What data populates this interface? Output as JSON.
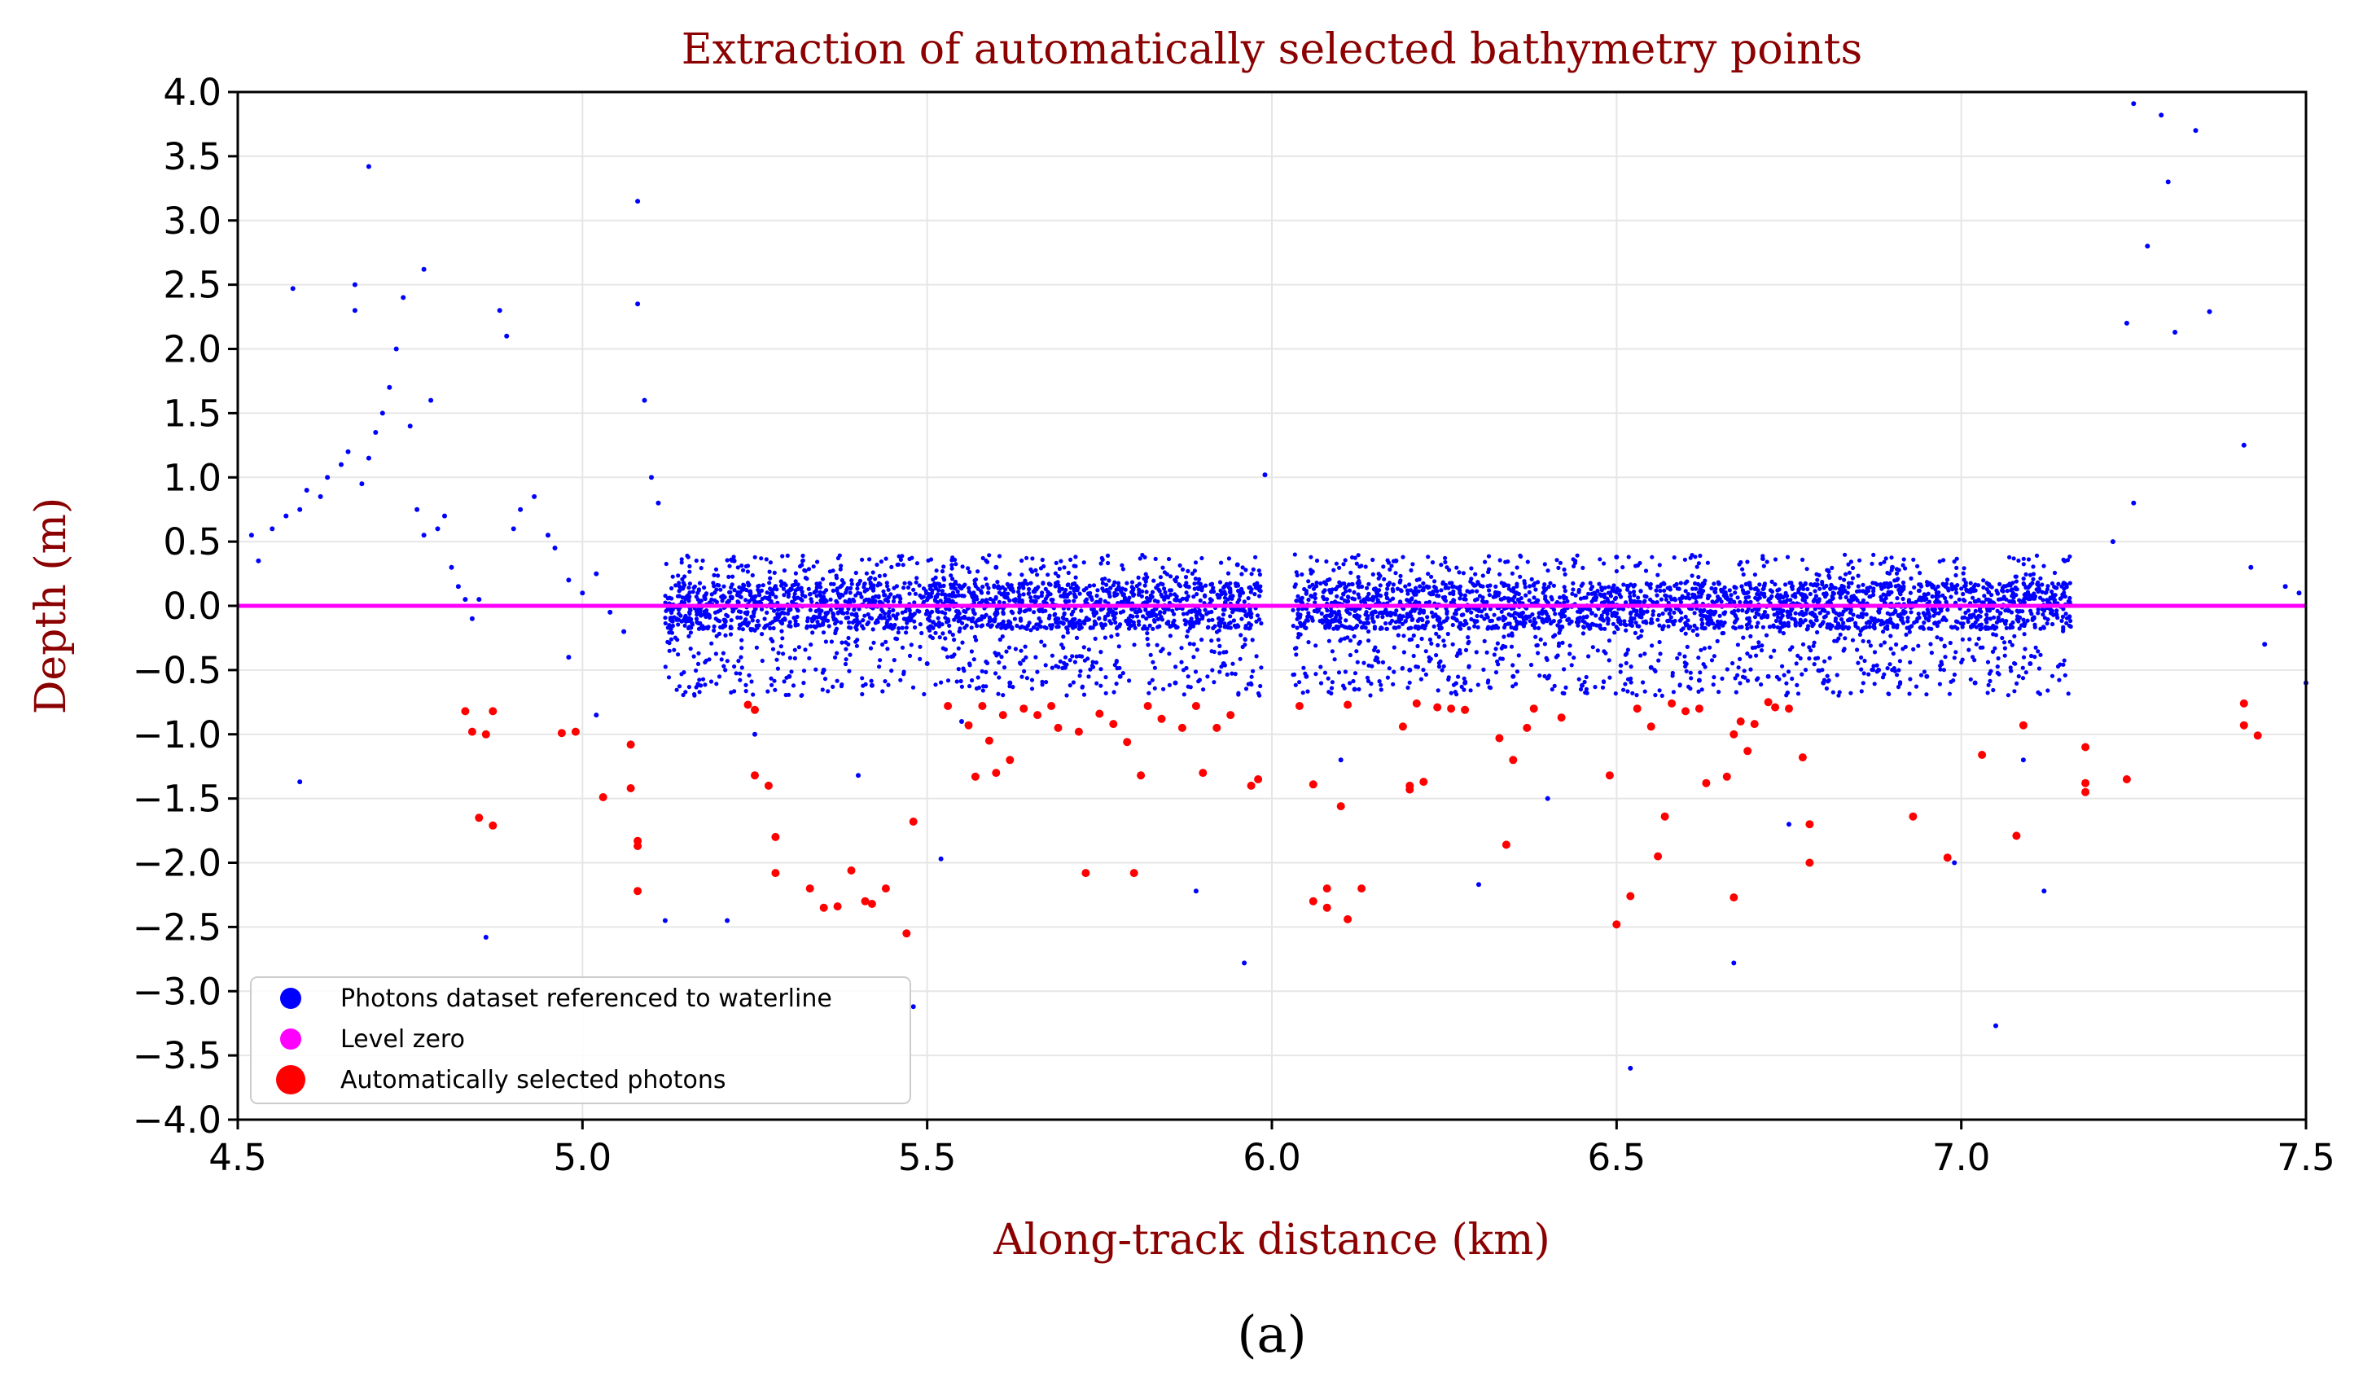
{
  "chart_data": {
    "type": "scatter",
    "title": "Extraction of automatically selected bathymetry points",
    "xlabel": "Along-track distance (km)",
    "ylabel": "Depth (m)",
    "xlim": [
      4.5,
      7.5
    ],
    "ylim": [
      -4.0,
      4.0
    ],
    "xticks": [
      4.5,
      5.0,
      5.5,
      6.0,
      6.5,
      7.0,
      7.5
    ],
    "xtick_labels": [
      "4.5",
      "5.0",
      "5.5",
      "6.0",
      "6.5",
      "7.0",
      "7.5"
    ],
    "yticks": [
      4.0,
      3.5,
      3.0,
      2.5,
      2.0,
      1.5,
      1.0,
      0.5,
      0.0,
      -0.5,
      -1.0,
      -1.5,
      -2.0,
      -2.5,
      -3.0,
      -3.5,
      -4.0
    ],
    "ytick_labels": [
      "4.0",
      "3.5",
      "3.0",
      "2.5",
      "2.0",
      "1.5",
      "1.0",
      "0.5",
      "0.0",
      "−0.5",
      "−1.0",
      "−1.5",
      "−2.0",
      "−2.5",
      "−3.0",
      "−3.5",
      "−4.0"
    ],
    "grid": true,
    "legend_position": "lower-left",
    "series": [
      {
        "name": "Photons dataset referenced to waterline",
        "color": "#0000ff",
        "points": [
          [
            4.52,
            0.55
          ],
          [
            4.53,
            0.35
          ],
          [
            4.55,
            0.6
          ],
          [
            4.57,
            0.7
          ],
          [
            4.59,
            0.75
          ],
          [
            4.6,
            0.9
          ],
          [
            4.62,
            0.85
          ],
          [
            4.63,
            1.0
          ],
          [
            4.65,
            1.1
          ],
          [
            4.66,
            1.2
          ],
          [
            4.67,
            2.3
          ],
          [
            4.67,
            2.5
          ],
          [
            4.68,
            0.95
          ],
          [
            4.69,
            1.15
          ],
          [
            4.7,
            1.35
          ],
          [
            4.71,
            1.5
          ],
          [
            4.72,
            1.7
          ],
          [
            4.73,
            2.0
          ],
          [
            4.74,
            2.4
          ],
          [
            4.75,
            1.4
          ],
          [
            4.76,
            0.75
          ],
          [
            4.77,
            0.55
          ],
          [
            4.78,
            1.6
          ],
          [
            4.79,
            0.6
          ],
          [
            4.8,
            0.7
          ],
          [
            4.81,
            0.3
          ],
          [
            4.82,
            0.15
          ],
          [
            4.83,
            0.05
          ],
          [
            4.84,
            -0.1
          ],
          [
            4.85,
            0.05
          ],
          [
            4.88,
            2.3
          ],
          [
            4.89,
            2.1
          ],
          [
            4.9,
            0.6
          ],
          [
            4.91,
            0.75
          ],
          [
            4.93,
            0.85
          ],
          [
            4.95,
            0.55
          ],
          [
            4.96,
            0.45
          ],
          [
            4.98,
            0.2
          ],
          [
            5.0,
            0.1
          ],
          [
            5.02,
            0.25
          ],
          [
            5.04,
            -0.05
          ],
          [
            5.06,
            -0.2
          ],
          [
            5.08,
            2.35
          ],
          [
            5.08,
            3.15
          ],
          [
            5.09,
            1.6
          ],
          [
            5.1,
            1.0
          ],
          [
            5.11,
            0.8
          ],
          [
            4.69,
            3.42
          ],
          [
            4.58,
            2.47
          ],
          [
            4.77,
            2.62
          ],
          [
            4.59,
            -1.37
          ],
          [
            4.86,
            -2.58
          ],
          [
            5.4,
            -1.32
          ],
          [
            5.48,
            -3.12
          ],
          [
            5.12,
            -2.45
          ],
          [
            5.21,
            -2.45
          ],
          [
            5.52,
            -1.97
          ],
          [
            5.89,
            -2.22
          ],
          [
            5.96,
            -2.78
          ],
          [
            6.52,
            -3.6
          ],
          [
            6.67,
            -2.78
          ],
          [
            6.99,
            -2.0
          ],
          [
            7.05,
            -3.27
          ],
          [
            7.09,
            -1.2
          ],
          [
            7.22,
            0.5
          ],
          [
            7.24,
            2.2
          ],
          [
            7.25,
            0.8
          ],
          [
            7.27,
            2.8
          ],
          [
            7.29,
            3.82
          ],
          [
            7.3,
            3.3
          ],
          [
            7.31,
            2.13
          ],
          [
            7.34,
            3.7
          ],
          [
            7.36,
            2.29
          ],
          [
            7.25,
            3.91
          ],
          [
            7.41,
            1.25
          ],
          [
            7.42,
            0.3
          ],
          [
            7.44,
            -0.3
          ],
          [
            7.47,
            0.15
          ],
          [
            7.49,
            0.1
          ],
          [
            7.5,
            -0.6
          ],
          [
            5.99,
            1.02
          ],
          [
            5.3,
            -0.55
          ],
          [
            5.35,
            -0.5
          ],
          [
            5.42,
            -0.62
          ],
          [
            5.5,
            -0.45
          ],
          [
            5.62,
            -0.6
          ],
          [
            5.7,
            -0.48
          ],
          [
            5.78,
            -0.55
          ],
          [
            5.86,
            -0.6
          ],
          [
            5.93,
            -0.45
          ],
          [
            6.05,
            -0.55
          ],
          [
            6.12,
            -0.65
          ],
          [
            6.2,
            -0.5
          ],
          [
            6.28,
            -0.6
          ],
          [
            6.35,
            -0.55
          ],
          [
            6.45,
            -0.62
          ],
          [
            6.55,
            -0.48
          ],
          [
            6.62,
            -0.58
          ],
          [
            6.72,
            -0.55
          ],
          [
            6.8,
            -0.6
          ],
          [
            6.88,
            -0.5
          ],
          [
            6.95,
            -0.55
          ],
          [
            7.02,
            -0.6
          ],
          [
            7.1,
            -0.45
          ],
          [
            5.22,
            0.35
          ],
          [
            5.6,
            0.3
          ],
          [
            5.95,
            0.32
          ],
          [
            6.18,
            0.35
          ],
          [
            6.5,
            0.38
          ],
          [
            6.9,
            0.3
          ],
          [
            7.15,
            0.35
          ],
          [
            5.55,
            -0.9
          ],
          [
            6.1,
            -1.2
          ],
          [
            6.4,
            -1.5
          ],
          [
            6.75,
            -1.7
          ],
          [
            5.25,
            -1.0
          ],
          [
            7.12,
            -2.22
          ],
          [
            5.02,
            -0.85
          ],
          [
            4.98,
            -0.4
          ],
          [
            6.3,
            -2.17
          ]
        ]
      },
      {
        "name": "Level zero",
        "color": "#ff00ff",
        "points": []
      },
      {
        "name": "Automatically selected photons",
        "color": "#ff0000",
        "points": [
          [
            4.83,
            -0.82
          ],
          [
            4.84,
            -0.98
          ],
          [
            4.86,
            -1.0
          ],
          [
            4.87,
            -0.82
          ],
          [
            4.85,
            -1.65
          ],
          [
            4.87,
            -1.71
          ],
          [
            4.97,
            -0.99
          ],
          [
            4.99,
            -0.98
          ],
          [
            5.03,
            -1.49
          ],
          [
            5.07,
            -1.08
          ],
          [
            5.07,
            -1.42
          ],
          [
            5.08,
            -1.83
          ],
          [
            5.08,
            -1.87
          ],
          [
            5.08,
            -2.22
          ],
          [
            5.24,
            -0.77
          ],
          [
            5.25,
            -0.81
          ],
          [
            5.25,
            -1.32
          ],
          [
            5.27,
            -1.4
          ],
          [
            5.28,
            -1.8
          ],
          [
            5.28,
            -2.08
          ],
          [
            5.33,
            -2.2
          ],
          [
            5.35,
            -2.35
          ],
          [
            5.37,
            -2.34
          ],
          [
            5.39,
            -2.06
          ],
          [
            5.41,
            -2.3
          ],
          [
            5.42,
            -2.32
          ],
          [
            5.44,
            -2.2
          ],
          [
            5.47,
            -2.55
          ],
          [
            5.48,
            -1.68
          ],
          [
            5.53,
            -0.78
          ],
          [
            5.56,
            -0.93
          ],
          [
            5.57,
            -1.33
          ],
          [
            5.58,
            -0.78
          ],
          [
            5.59,
            -1.05
          ],
          [
            5.6,
            -1.3
          ],
          [
            5.61,
            -0.85
          ],
          [
            5.62,
            -1.2
          ],
          [
            5.64,
            -0.8
          ],
          [
            5.66,
            -0.85
          ],
          [
            5.68,
            -0.78
          ],
          [
            5.69,
            -0.95
          ],
          [
            5.72,
            -0.98
          ],
          [
            5.73,
            -2.08
          ],
          [
            5.75,
            -0.84
          ],
          [
            5.77,
            -0.92
          ],
          [
            5.79,
            -1.06
          ],
          [
            5.8,
            -2.08
          ],
          [
            5.81,
            -1.32
          ],
          [
            5.82,
            -0.78
          ],
          [
            5.84,
            -0.88
          ],
          [
            5.87,
            -0.95
          ],
          [
            5.89,
            -0.78
          ],
          [
            5.9,
            -1.3
          ],
          [
            5.92,
            -0.95
          ],
          [
            5.94,
            -0.85
          ],
          [
            5.97,
            -1.4
          ],
          [
            5.98,
            -1.35
          ],
          [
            6.04,
            -0.78
          ],
          [
            6.06,
            -1.39
          ],
          [
            6.06,
            -2.3
          ],
          [
            6.08,
            -2.2
          ],
          [
            6.08,
            -2.35
          ],
          [
            6.1,
            -1.56
          ],
          [
            6.11,
            -0.77
          ],
          [
            6.11,
            -2.44
          ],
          [
            6.13,
            -2.2
          ],
          [
            6.19,
            -0.94
          ],
          [
            6.2,
            -1.4
          ],
          [
            6.2,
            -1.43
          ],
          [
            6.21,
            -0.76
          ],
          [
            6.22,
            -1.37
          ],
          [
            6.24,
            -0.79
          ],
          [
            6.26,
            -0.8
          ],
          [
            6.28,
            -0.81
          ],
          [
            6.33,
            -1.03
          ],
          [
            6.34,
            -1.86
          ],
          [
            6.35,
            -1.2
          ],
          [
            6.37,
            -0.95
          ],
          [
            6.38,
            -0.8
          ],
          [
            6.42,
            -0.87
          ],
          [
            6.49,
            -1.32
          ],
          [
            6.5,
            -2.48
          ],
          [
            6.52,
            -2.26
          ],
          [
            6.53,
            -0.8
          ],
          [
            6.55,
            -0.94
          ],
          [
            6.56,
            -1.95
          ],
          [
            6.57,
            -1.64
          ],
          [
            6.58,
            -0.76
          ],
          [
            6.6,
            -0.82
          ],
          [
            6.62,
            -0.8
          ],
          [
            6.63,
            -1.38
          ],
          [
            6.66,
            -1.33
          ],
          [
            6.67,
            -1.0
          ],
          [
            6.67,
            -2.27
          ],
          [
            6.68,
            -0.9
          ],
          [
            6.69,
            -1.13
          ],
          [
            6.7,
            -0.92
          ],
          [
            6.72,
            -0.75
          ],
          [
            6.73,
            -0.79
          ],
          [
            6.75,
            -0.8
          ],
          [
            6.77,
            -1.18
          ],
          [
            6.78,
            -1.7
          ],
          [
            6.78,
            -2.0
          ],
          [
            6.93,
            -1.64
          ],
          [
            6.98,
            -1.96
          ],
          [
            7.03,
            -1.16
          ],
          [
            7.08,
            -1.79
          ],
          [
            7.09,
            -0.93
          ],
          [
            7.18,
            -1.1
          ],
          [
            7.18,
            -1.38
          ],
          [
            7.18,
            -1.45
          ],
          [
            7.24,
            -1.35
          ],
          [
            7.41,
            -0.76
          ],
          [
            7.41,
            -0.93
          ],
          [
            7.43,
            -1.01
          ]
        ]
      }
    ]
  },
  "caption": "(a)"
}
